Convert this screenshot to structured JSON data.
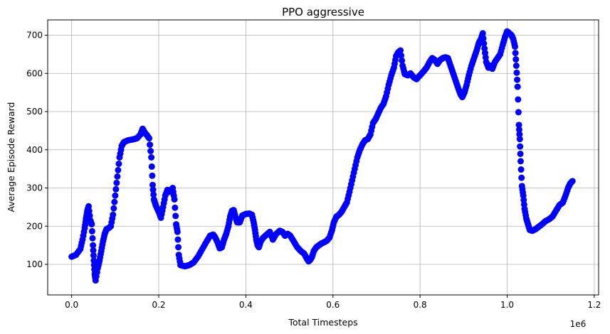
{
  "chart_data": {
    "type": "scatter",
    "title": "PPO aggressive",
    "xlabel": "Total Timesteps",
    "ylabel": "Average Episode Reward",
    "x_scale_label": "1e6",
    "xlim": [
      -0.055,
      1.21
    ],
    "ylim": [
      20,
      740
    ],
    "x_ticks": [
      0.0,
      0.2,
      0.4,
      0.6,
      0.8,
      1.0,
      1.2
    ],
    "x_tick_labels": [
      "0.0",
      "0.2",
      "0.4",
      "0.6",
      "0.8",
      "1.0",
      "1.2"
    ],
    "y_ticks": [
      100,
      200,
      300,
      400,
      500,
      600,
      700
    ],
    "y_tick_labels": [
      "100",
      "200",
      "300",
      "400",
      "500",
      "600",
      "700"
    ],
    "grid": true,
    "marker_color": "#0000ff",
    "x_units": "millions of timesteps",
    "series": [
      {
        "points": [
          [
            0.0,
            120
          ],
          [
            0.01,
            125
          ],
          [
            0.02,
            140
          ],
          [
            0.025,
            165
          ],
          [
            0.03,
            195
          ],
          [
            0.033,
            220
          ],
          [
            0.036,
            240
          ],
          [
            0.039,
            252
          ],
          [
            0.043,
            215
          ],
          [
            0.046,
            205
          ],
          [
            0.049,
            150
          ],
          [
            0.051,
            110
          ],
          [
            0.053,
            75
          ],
          [
            0.055,
            58
          ],
          [
            0.06,
            90
          ],
          [
            0.064,
            110
          ],
          [
            0.068,
            135
          ],
          [
            0.072,
            160
          ],
          [
            0.076,
            180
          ],
          [
            0.08,
            192
          ],
          [
            0.085,
            195
          ],
          [
            0.09,
            200
          ],
          [
            0.095,
            230
          ],
          [
            0.1,
            280
          ],
          [
            0.105,
            330
          ],
          [
            0.11,
            380
          ],
          [
            0.115,
            410
          ],
          [
            0.12,
            420
          ],
          [
            0.13,
            425
          ],
          [
            0.14,
            427
          ],
          [
            0.15,
            430
          ],
          [
            0.158,
            440
          ],
          [
            0.163,
            455
          ],
          [
            0.168,
            445
          ],
          [
            0.173,
            438
          ],
          [
            0.178,
            430
          ],
          [
            0.183,
            380
          ],
          [
            0.186,
            308
          ],
          [
            0.189,
            270
          ],
          [
            0.193,
            255
          ],
          [
            0.197,
            245
          ],
          [
            0.201,
            235
          ],
          [
            0.205,
            222
          ],
          [
            0.21,
            250
          ],
          [
            0.215,
            280
          ],
          [
            0.22,
            295
          ],
          [
            0.226,
            290
          ],
          [
            0.232,
            300
          ],
          [
            0.236,
            270
          ],
          [
            0.24,
            205
          ],
          [
            0.243,
            185
          ],
          [
            0.246,
            125
          ],
          [
            0.25,
            98
          ],
          [
            0.26,
            95
          ],
          [
            0.27,
            98
          ],
          [
            0.28,
            105
          ],
          [
            0.29,
            120
          ],
          [
            0.3,
            140
          ],
          [
            0.31,
            160
          ],
          [
            0.318,
            175
          ],
          [
            0.325,
            178
          ],
          [
            0.33,
            170
          ],
          [
            0.336,
            155
          ],
          [
            0.34,
            142
          ],
          [
            0.345,
            145
          ],
          [
            0.35,
            165
          ],
          [
            0.355,
            180
          ],
          [
            0.36,
            200
          ],
          [
            0.364,
            225
          ],
          [
            0.368,
            240
          ],
          [
            0.372,
            242
          ],
          [
            0.376,
            225
          ],
          [
            0.38,
            210
          ],
          [
            0.386,
            210
          ],
          [
            0.392,
            228
          ],
          [
            0.4,
            232
          ],
          [
            0.408,
            233
          ],
          [
            0.414,
            230
          ],
          [
            0.418,
            210
          ],
          [
            0.421,
            190
          ],
          [
            0.424,
            165
          ],
          [
            0.427,
            150
          ],
          [
            0.43,
            145
          ],
          [
            0.434,
            160
          ],
          [
            0.44,
            170
          ],
          [
            0.448,
            178
          ],
          [
            0.455,
            185
          ],
          [
            0.462,
            165
          ],
          [
            0.47,
            180
          ],
          [
            0.478,
            188
          ],
          [
            0.484,
            185
          ],
          [
            0.49,
            175
          ],
          [
            0.496,
            180
          ],
          [
            0.502,
            175
          ],
          [
            0.51,
            160
          ],
          [
            0.518,
            145
          ],
          [
            0.526,
            135
          ],
          [
            0.534,
            128
          ],
          [
            0.54,
            115
          ],
          [
            0.544,
            108
          ],
          [
            0.548,
            112
          ],
          [
            0.552,
            120
          ],
          [
            0.556,
            135
          ],
          [
            0.562,
            145
          ],
          [
            0.568,
            150
          ],
          [
            0.574,
            155
          ],
          [
            0.58,
            158
          ],
          [
            0.586,
            162
          ],
          [
            0.592,
            170
          ],
          [
            0.598,
            190
          ],
          [
            0.602,
            210
          ],
          [
            0.608,
            225
          ],
          [
            0.614,
            230
          ],
          [
            0.62,
            238
          ],
          [
            0.626,
            250
          ],
          [
            0.632,
            262
          ],
          [
            0.638,
            290
          ],
          [
            0.644,
            320
          ],
          [
            0.65,
            350
          ],
          [
            0.656,
            380
          ],
          [
            0.662,
            400
          ],
          [
            0.668,
            415
          ],
          [
            0.674,
            425
          ],
          [
            0.68,
            428
          ],
          [
            0.686,
            440
          ],
          [
            0.692,
            470
          ],
          [
            0.698,
            480
          ],
          [
            0.704,
            495
          ],
          [
            0.71,
            510
          ],
          [
            0.716,
            520
          ],
          [
            0.722,
            540
          ],
          [
            0.728,
            570
          ],
          [
            0.734,
            595
          ],
          [
            0.74,
            615
          ],
          [
            0.745,
            645
          ],
          [
            0.75,
            655
          ],
          [
            0.755,
            660
          ],
          [
            0.76,
            620
          ],
          [
            0.765,
            598
          ],
          [
            0.772,
            595
          ],
          [
            0.778,
            600
          ],
          [
            0.785,
            590
          ],
          [
            0.792,
            585
          ],
          [
            0.8,
            595
          ],
          [
            0.808,
            605
          ],
          [
            0.815,
            615
          ],
          [
            0.822,
            630
          ],
          [
            0.828,
            640
          ],
          [
            0.834,
            635
          ],
          [
            0.84,
            625
          ],
          [
            0.846,
            635
          ],
          [
            0.852,
            640
          ],
          [
            0.858,
            642
          ],
          [
            0.864,
            640
          ],
          [
            0.87,
            620
          ],
          [
            0.876,
            600
          ],
          [
            0.882,
            580
          ],
          [
            0.888,
            560
          ],
          [
            0.893,
            545
          ],
          [
            0.897,
            538
          ],
          [
            0.902,
            550
          ],
          [
            0.907,
            570
          ],
          [
            0.912,
            595
          ],
          [
            0.918,
            620
          ],
          [
            0.924,
            640
          ],
          [
            0.93,
            660
          ],
          [
            0.935,
            680
          ],
          [
            0.94,
            690
          ],
          [
            0.944,
            705
          ],
          [
            0.948,
            665
          ],
          [
            0.952,
            630
          ],
          [
            0.957,
            615
          ],
          [
            0.962,
            620
          ],
          [
            0.966,
            612
          ],
          [
            0.972,
            630
          ],
          [
            0.978,
            640
          ],
          [
            0.984,
            650
          ],
          [
            0.99,
            675
          ],
          [
            0.995,
            695
          ],
          [
            1.0,
            710
          ],
          [
            1.005,
            705
          ],
          [
            1.01,
            700
          ],
          [
            1.014,
            690
          ],
          [
            1.018,
            670
          ],
          [
            1.021,
            620
          ],
          [
            1.024,
            565
          ],
          [
            1.027,
            465
          ],
          [
            1.029,
            428
          ],
          [
            1.031,
            370
          ],
          [
            1.034,
            305
          ],
          [
            1.037,
            280
          ],
          [
            1.04,
            245
          ],
          [
            1.044,
            220
          ],
          [
            1.048,
            205
          ],
          [
            1.052,
            190
          ],
          [
            1.058,
            188
          ],
          [
            1.065,
            192
          ],
          [
            1.072,
            198
          ],
          [
            1.08,
            205
          ],
          [
            1.088,
            213
          ],
          [
            1.096,
            218
          ],
          [
            1.104,
            225
          ],
          [
            1.112,
            240
          ],
          [
            1.12,
            255
          ],
          [
            1.128,
            262
          ],
          [
            1.134,
            280
          ],
          [
            1.14,
            300
          ],
          [
            1.145,
            312
          ],
          [
            1.15,
            318
          ]
        ]
      }
    ]
  }
}
